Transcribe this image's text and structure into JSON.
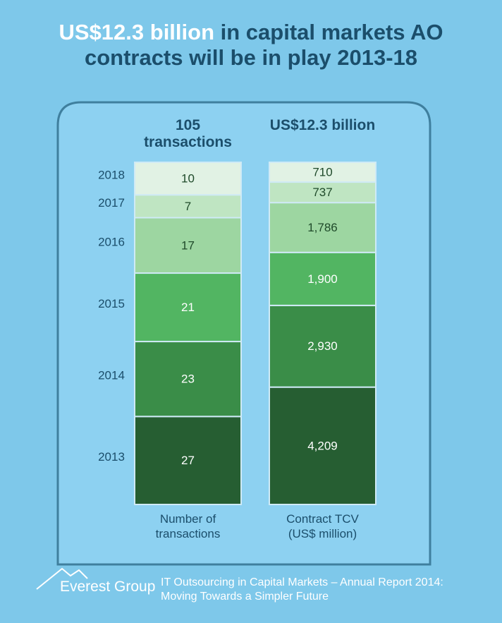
{
  "title": {
    "highlight": "US$12.3 billion",
    "rest": "in capital markets AO contracts will be in play 2013-18"
  },
  "chart_data": {
    "type": "stacked_bar",
    "headers": [
      "105 transactions",
      "US$12.3 billion"
    ],
    "categories": [
      "Number of transactions",
      "Contract TCV (US$ million)"
    ],
    "series": [
      {
        "name": "2013",
        "color": "#265e32",
        "values": [
          27,
          4209
        ],
        "value_labels": [
          "27",
          "4,209"
        ]
      },
      {
        "name": "2014",
        "color": "#3a8d48",
        "values": [
          23,
          2930
        ],
        "value_labels": [
          "23",
          "2,930"
        ]
      },
      {
        "name": "2015",
        "color": "#52b562",
        "values": [
          21,
          1900
        ],
        "value_labels": [
          "21",
          "1,900"
        ]
      },
      {
        "name": "2016",
        "color": "#9dd6a1",
        "values": [
          17,
          1786
        ],
        "value_labels": [
          "17",
          "1,786"
        ]
      },
      {
        "name": "2017",
        "color": "#bfe5c2",
        "values": [
          7,
          737
        ],
        "value_labels": [
          "7",
          "737"
        ]
      },
      {
        "name": "2018",
        "color": "#e1f2e4",
        "values": [
          10,
          710
        ],
        "value_labels": [
          "10",
          "710"
        ]
      }
    ]
  },
  "footer": {
    "brand": "Everest Group",
    "source": "IT Outsourcing in Capital Markets – Annual Report 2014: Moving Towards a Simpler Future"
  }
}
